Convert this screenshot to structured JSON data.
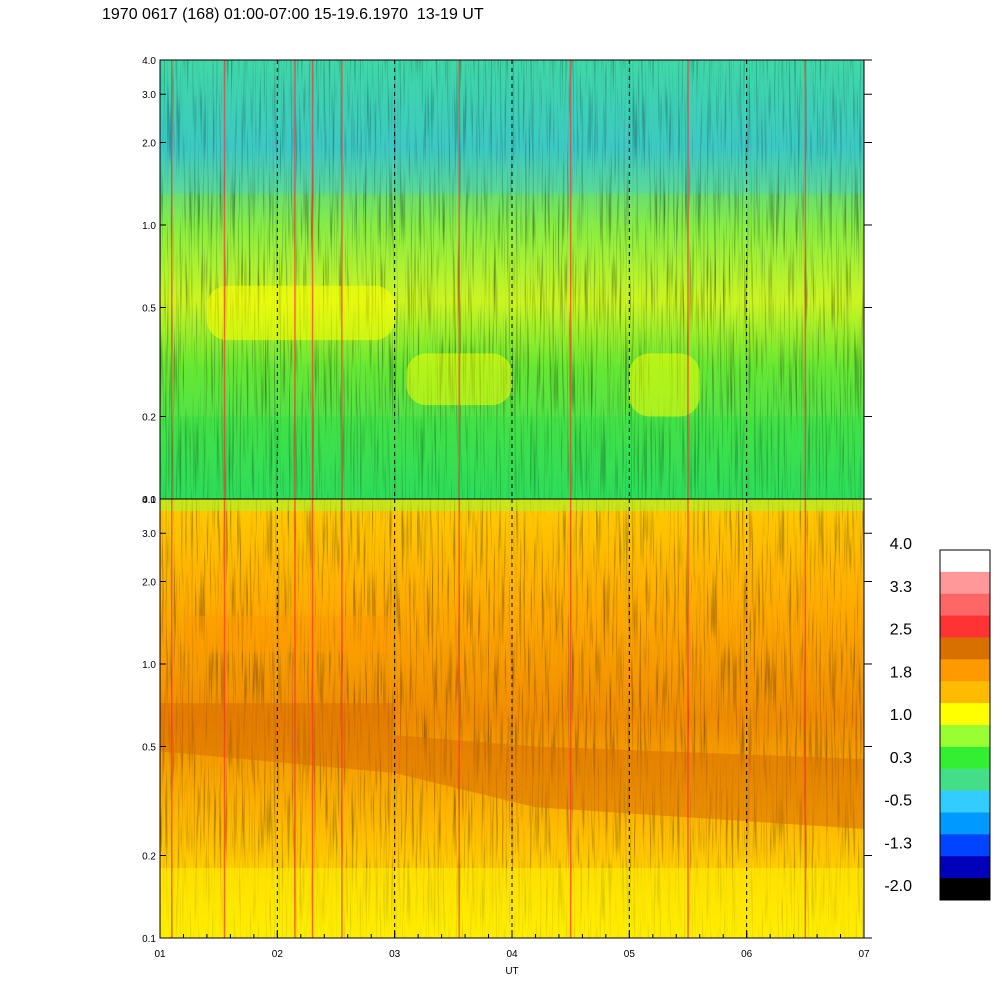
{
  "title": "1970 0617 (168) 01:00-07:00 15-19.6.1970  13-19 UT",
  "chart_data": {
    "type": "heatmap",
    "title": "1970 0617 (168) 01:00-07:00 15-19.6.1970  13-19 UT",
    "xlabel": "UT",
    "ylabel": "",
    "x_range": [
      1,
      7
    ],
    "x_ticks": [
      "01",
      "02",
      "03",
      "04",
      "05",
      "06",
      "07"
    ],
    "y_scale": "log",
    "panels": [
      {
        "name": "",
        "ylim": [
          0.1,
          4.0
        ],
        "y_ticks": [
          "0.1",
          "0.2",
          "0.5",
          "1.0",
          "2.0",
          "3.0",
          "4.0"
        ],
        "dominant_levels": "green to cyan/blue above 1.0; yellow band near 0.3-0.5; green below 0.3",
        "vertical_spikes_ut": [
          1.1,
          1.55,
          2.15,
          2.3,
          2.55,
          3.55,
          4.5,
          5.5,
          6.5
        ]
      },
      {
        "name": "",
        "ylim": [
          0.1,
          4.0
        ],
        "y_ticks": [
          "0.1",
          "0.2",
          "0.5",
          "1.0",
          "2.0",
          "3.0",
          "4.0"
        ],
        "dominant_levels": "orange/yellow throughout; dark-orange band near 0.6-0.7 from 01-03, dropping to 0.3-0.5 after 03",
        "vertical_spikes_ut": [
          1.1,
          1.55,
          2.15,
          2.3,
          2.55,
          3.55,
          4.5,
          5.5,
          6.5
        ]
      }
    ],
    "vertical_dashed_lines_ut": [
      2,
      3,
      4,
      5,
      6
    ],
    "colorbar": {
      "labels": [
        "4.0",
        "3.3",
        "2.5",
        "1.8",
        "1.0",
        "0.3",
        "-0.5",
        "-1.3",
        "-2.0"
      ],
      "colors": [
        "#ffffff",
        "#ff9999",
        "#ff6666",
        "#ff3333",
        "#d87000",
        "#ff9900",
        "#ffbb00",
        "#ffff00",
        "#99ff33",
        "#33ee33",
        "#44dd88",
        "#33ccff",
        "#0099ff",
        "#0044ff",
        "#0000bb",
        "#000000"
      ]
    }
  }
}
